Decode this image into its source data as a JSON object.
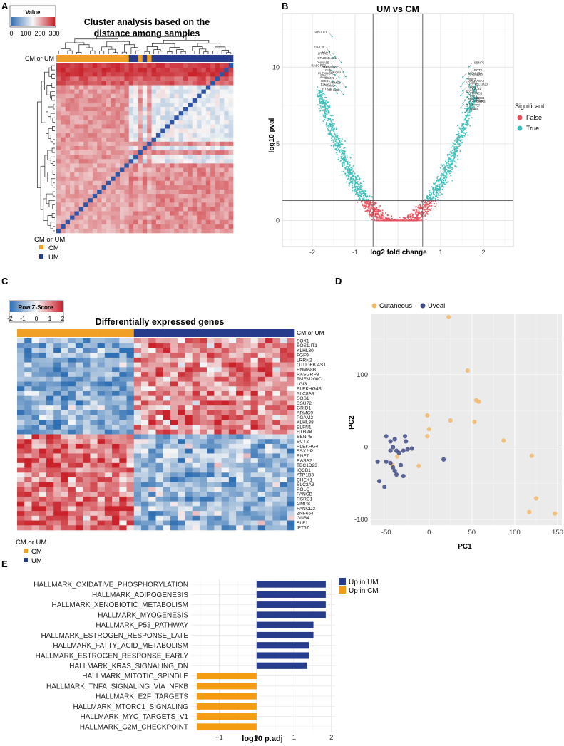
{
  "panel_labels": {
    "a": "A",
    "b": "B",
    "c": "C",
    "d": "D",
    "e": "E"
  },
  "colors": {
    "cm": "#f0a125",
    "um": "#273c8a",
    "heat_low": "#2f6fb3",
    "heat_mid": "#f7f7f7",
    "heat_high": "#c9222a",
    "volcano_true": "#3cbfb9",
    "volcano_false": "#e8505b",
    "pca_cutaneous": "#f3b868",
    "pca_uveal": "#3e4a86",
    "up_um": "#273c8a",
    "up_cm": "#f39c12"
  },
  "chart_data": [
    {
      "type": "heatmap",
      "panel": "A",
      "title_line1": "Cluster analysis based on the",
      "title_line2": "distance among samples",
      "colorkey_title": "Value",
      "colorkey_ticks": [
        "0",
        "100",
        "200",
        "300"
      ],
      "annotation_label": "CM or UM",
      "legend_title": "CM or UM",
      "legend_items": [
        "CM",
        "UM"
      ],
      "n_samples": 39,
      "groups": [
        "CM",
        "CM",
        "CM",
        "CM",
        "CM",
        "CM",
        "CM",
        "CM",
        "CM",
        "CM",
        "CM",
        "CM",
        "CM",
        "CM",
        "CM",
        "CM",
        "UM",
        "UM",
        "CM",
        "UM",
        "CM",
        "UM",
        "UM",
        "UM",
        "UM",
        "UM",
        "UM",
        "UM",
        "UM",
        "UM",
        "UM",
        "UM",
        "UM",
        "UM",
        "UM",
        "UM",
        "UM",
        "UM",
        "UM"
      ]
    },
    {
      "type": "scatter",
      "panel": "B",
      "title": "UM vs CM",
      "xlabel": "log2 fold change",
      "ylabel": "log10 pval",
      "xlim": [
        -2.7,
        2.7
      ],
      "ylim": [
        -1.7,
        13.5
      ],
      "xticks": [
        -2,
        -1,
        0,
        1,
        2
      ],
      "xtick_labels": [
        "-2",
        "-1",
        "0",
        "1",
        "2"
      ],
      "yticks": [
        0,
        5,
        10
      ],
      "ytick_labels": [
        "0",
        "5",
        "10"
      ],
      "thresholds": {
        "fc": 0.58,
        "pval": 1.3
      },
      "legend_title": "Significant",
      "legend_items": [
        "False",
        "True"
      ],
      "labeled_genes_left": [
        {
          "gene": "SOS1.IT1",
          "x": -1.62,
          "y": 12.3
        },
        {
          "gene": "KLHL30",
          "x": -1.68,
          "y": 11.3
        },
        {
          "gene": "FGF9",
          "x": -1.55,
          "y": 11.0
        },
        {
          "gene": "LRRN2",
          "x": -1.6,
          "y": 10.9
        },
        {
          "gene": "OTUD6B.AS1",
          "x": -1.4,
          "y": 10.6
        },
        {
          "gene": "PNMA8B",
          "x": -1.57,
          "y": 10.3
        },
        {
          "gene": "RASGRP3",
          "x": -1.65,
          "y": 10.1
        },
        {
          "gene": "TMEM200C",
          "x": -1.35,
          "y": 10.0
        },
        {
          "gene": "LGI3",
          "x": -1.55,
          "y": 9.8
        },
        {
          "gene": "PLEKHG4B",
          "x": -1.45,
          "y": 9.6
        },
        {
          "gene": "SLC8A3",
          "x": -1.3,
          "y": 9.7
        },
        {
          "gene": "SOS1",
          "x": -1.6,
          "y": 9.4
        },
        {
          "gene": "SSU72",
          "x": -1.45,
          "y": 9.3
        },
        {
          "gene": "GRID1",
          "x": -1.55,
          "y": 9.1
        },
        {
          "gene": "ARMC9",
          "x": -1.3,
          "y": 9.0
        },
        {
          "gene": "ELFN1",
          "x": -1.55,
          "y": 8.9
        },
        {
          "gene": "PGAM2",
          "x": -1.45,
          "y": 8.8
        },
        {
          "gene": "HTR2B",
          "x": -1.5,
          "y": 8.6
        },
        {
          "gene": "KLHL38",
          "x": -1.35,
          "y": 8.5
        }
      ],
      "labeled_genes_right": [
        {
          "gene": "SENP5",
          "x": 1.75,
          "y": 10.3
        },
        {
          "gene": "ECT2",
          "x": 1.75,
          "y": 9.8
        },
        {
          "gene": "PLEKHG4",
          "x": 1.6,
          "y": 9.6
        },
        {
          "gene": "SSX2IP",
          "x": 1.7,
          "y": 9.5
        },
        {
          "gene": "RNF7",
          "x": 1.6,
          "y": 9.2
        },
        {
          "gene": "RASA2",
          "x": 1.75,
          "y": 9.1
        },
        {
          "gene": "ATP1B3",
          "x": 1.55,
          "y": 9.0
        },
        {
          "gene": "TBC1D23",
          "x": 1.75,
          "y": 8.9
        },
        {
          "gene": "CHEK1",
          "x": 1.6,
          "y": 8.7
        },
        {
          "gene": "IQCB1",
          "x": 1.7,
          "y": 8.6
        },
        {
          "gene": "SLC2A3",
          "x": 1.55,
          "y": 8.4
        },
        {
          "gene": "FANCB",
          "x": 1.7,
          "y": 8.3
        },
        {
          "gene": "POLQ",
          "x": 1.65,
          "y": 8.1
        },
        {
          "gene": "RSRC1",
          "x": 1.75,
          "y": 8.0
        },
        {
          "gene": "FANCD2",
          "x": 1.6,
          "y": 7.9
        },
        {
          "gene": "ZNF654",
          "x": 1.7,
          "y": 7.8
        },
        {
          "gene": "GMPS",
          "x": 1.8,
          "y": 7.75
        },
        {
          "gene": "SLF1",
          "x": 1.55,
          "y": 7.6
        },
        {
          "gene": "IFT57",
          "x": 1.7,
          "y": 7.5
        },
        {
          "gene": "GNB4",
          "x": 1.65,
          "y": 7.3
        }
      ]
    },
    {
      "type": "heatmap",
      "panel": "C",
      "title": "Differentially expressed genes",
      "colorkey_title": "Row Z-Score",
      "colorkey_ticks": [
        "-2",
        "-1",
        "0",
        "1",
        "2"
      ],
      "annotation_label": "CM or UM",
      "legend_title": "CM or UM",
      "legend_items": [
        "CM",
        "UM"
      ],
      "n_cm": 16,
      "n_um": 22,
      "genes": [
        "SOX1",
        "SOS1.IT1",
        "KLHL30",
        "FGF9",
        "LRRN2",
        "OTUD6B.AS1",
        "PNMA8B",
        "RASGRP3",
        "TMEM200C",
        "LGI3",
        "PLEKHG4B",
        "SLC8A3",
        "SOS1",
        "SSU72",
        "GRID1",
        "ARMC9",
        "PGAM2",
        "KLHL38",
        "ELFN1",
        "HTR2B",
        "SENP5",
        "ECT2",
        "PLEKHG4",
        "SSX2IP",
        "RNF7",
        "RASA2",
        "TBC1D23",
        "IQCB1",
        "ATP1B3",
        "CHEK1",
        "SLC2A3",
        "POLQ",
        "FANCB",
        "RSRC1",
        "GMPS",
        "FANCD2",
        "ZNF654",
        "GNB4",
        "SLF1",
        "IFT57"
      ],
      "n_up_um": 20
    },
    {
      "type": "scatter",
      "panel": "D",
      "xlabel": "PC1",
      "ylabel": "PC2",
      "xlim": [
        -68,
        155
      ],
      "ylim": [
        -108,
        185
      ],
      "xticks": [
        -50,
        0,
        50,
        100,
        150
      ],
      "xtick_labels": [
        "-50",
        "0",
        "50",
        "100",
        "150"
      ],
      "yticks": [
        -100,
        0,
        100
      ],
      "ytick_labels": [
        "-100",
        "0",
        "100"
      ],
      "legend_items": [
        "Cutaneous",
        "Uveal"
      ],
      "series": [
        {
          "name": "Cutaneous",
          "points": [
            [
              23,
              180
            ],
            [
              45,
              106
            ],
            [
              55,
              65
            ],
            [
              58,
              63
            ],
            [
              25,
              37
            ],
            [
              53,
              35
            ],
            [
              -2,
              44
            ],
            [
              0,
              25
            ],
            [
              -2,
              15
            ],
            [
              87,
              9
            ],
            [
              120,
              -12
            ],
            [
              -12,
              -26
            ],
            [
              -37,
              -13
            ],
            [
              -43,
              -25
            ],
            [
              125,
              -71
            ],
            [
              117,
              -90
            ],
            [
              147,
              -92
            ]
          ]
        },
        {
          "name": "Uveal",
          "points": [
            [
              -50,
              15
            ],
            [
              -45,
              8
            ],
            [
              -40,
              11
            ],
            [
              -28,
              15
            ],
            [
              -27,
              8
            ],
            [
              -42,
              0
            ],
            [
              -38,
              -5
            ],
            [
              -45,
              -5
            ],
            [
              -30,
              -5
            ],
            [
              -35,
              -8
            ],
            [
              -25,
              -3
            ],
            [
              -20,
              -2
            ],
            [
              -50,
              -20
            ],
            [
              -45,
              -22
            ],
            [
              -42,
              -28
            ],
            [
              -40,
              -33
            ],
            [
              -33,
              -25
            ],
            [
              -60,
              -20
            ],
            [
              -58,
              -47
            ],
            [
              -52,
              -55
            ],
            [
              -30,
              -40
            ],
            [
              -38,
              -38
            ],
            [
              17,
              -17
            ]
          ]
        }
      ]
    },
    {
      "type": "bar",
      "panel": "E",
      "orientation": "horizontal",
      "xlabel": "log10 p.adj",
      "xlim": [
        -1.75,
        2.1
      ],
      "xticks": [
        -1,
        0,
        1,
        2
      ],
      "xtick_labels": [
        "−1",
        "0",
        "1",
        "2"
      ],
      "categories": [
        "HALLMARK_OXIDATIVE_PHOSPHORYLATION",
        "HALLMARK_ADIPOGENESIS",
        "HALLMARK_XENOBIOTIC_METABOLISM",
        "HALLMARK_MYOGENESIS",
        "HALLMARK_P53_PATHWAY",
        "HALLMARK_ESTROGEN_RESPONSE_LATE",
        "HALLMARK_FATTY_ACID_METABOLISM",
        "HALLMARK_ESTROGEN_RESPONSE_EARLY",
        "HALLMARK_KRAS_SIGNALING_DN",
        "HALLMARK_MITOTIC_SPINDLE",
        "HALLMARK_TNFA_SIGNALING_VIA_NFKB",
        "HALLMARK_E2F_TARGETS",
        "HALLMARK_MTORC1_SIGNALING",
        "HALLMARK_MYC_TARGETS_V1",
        "HALLMARK_G2M_CHECKPOINT"
      ],
      "values": [
        1.85,
        1.85,
        1.85,
        1.85,
        1.52,
        1.52,
        1.4,
        1.4,
        1.35,
        -1.6,
        -1.6,
        -1.6,
        -1.6,
        -1.6,
        -1.6
      ],
      "groups": [
        "Up in UM",
        "Up in UM",
        "Up in UM",
        "Up in UM",
        "Up in UM",
        "Up in UM",
        "Up in UM",
        "Up in UM",
        "Up in UM",
        "Up in CM",
        "Up in CM",
        "Up in CM",
        "Up in CM",
        "Up in CM",
        "Up in CM"
      ],
      "legend_items": [
        "Up in UM",
        "Up in CM"
      ]
    }
  ]
}
